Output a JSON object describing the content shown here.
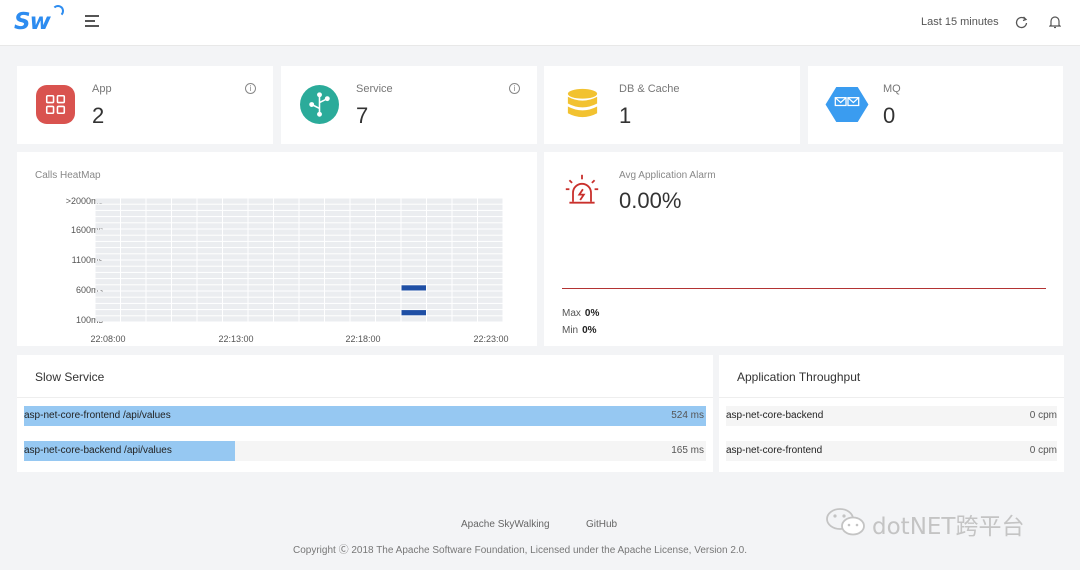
{
  "header": {
    "logo": "Sw",
    "time_range": "Last 15 minutes"
  },
  "stats": [
    {
      "label": "App",
      "value": "2",
      "color": "#d9534f",
      "icon": "app-grid-icon",
      "info": true
    },
    {
      "label": "Service",
      "value": "7",
      "color": "#2bab9a",
      "icon": "service-network-icon",
      "info": true
    },
    {
      "label": "DB & Cache",
      "value": "1",
      "color": "#f2c230",
      "icon": "database-icon",
      "info": false
    },
    {
      "label": "MQ",
      "value": "0",
      "color": "#3a9cf0",
      "icon": "mq-envelope-icon",
      "info": false
    }
  ],
  "heatmap": {
    "title": "Calls HeatMap",
    "y_labels": [
      ">2000ms",
      "1600ms",
      "1100ms",
      "600ms",
      "100ms"
    ],
    "x_labels": [
      "22:08:00",
      "22:13:00",
      "22:18:00",
      "22:23:00"
    ]
  },
  "alarm": {
    "title": "Avg Application Alarm",
    "value": "0.00%",
    "max_label": "Max",
    "max_value": "0%",
    "min_label": "Min",
    "min_value": "0%",
    "line_color": "#b33333"
  },
  "slow_service": {
    "title": "Slow Service",
    "items": [
      {
        "name": "asp-net-core-frontend /api/values",
        "value": "524 ms",
        "ratio": 1.0
      },
      {
        "name": "asp-net-core-backend /api/values",
        "value": "165 ms",
        "ratio": 0.31
      }
    ]
  },
  "throughput": {
    "title": "Application Throughput",
    "items": [
      {
        "name": "asp-net-core-backend",
        "value": "0 cpm"
      },
      {
        "name": "asp-net-core-frontend",
        "value": "0 cpm"
      }
    ]
  },
  "footer": {
    "link_skywalking": "Apache SkyWalking",
    "link_github": "GitHub",
    "copyright": "Copyright Ⓒ 2018 The Apache Software Foundation, Licensed under the Apache License, Version 2.0."
  },
  "watermark": "dotNET跨平台"
}
